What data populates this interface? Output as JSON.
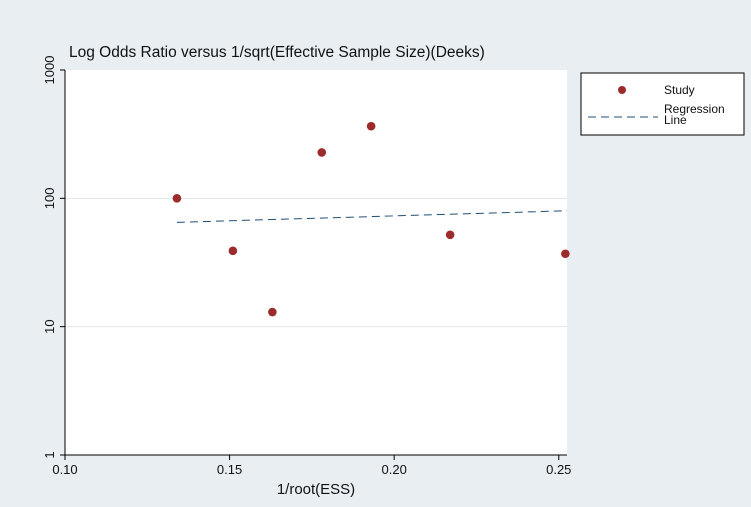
{
  "chart_data": {
    "type": "scatter",
    "title": "Log Odds Ratio versus 1/sqrt(Effective Sample Size)(Deeks)",
    "xlabel": "1/root(ESS)",
    "ylabel": "",
    "x_ticks": [
      "0.10",
      "0.15",
      "0.20",
      "0.25"
    ],
    "x_tick_values": [
      0.1,
      0.15,
      0.2,
      0.25
    ],
    "y_ticks": [
      "1",
      "10",
      "100",
      "1000"
    ],
    "y_tick_values": [
      1,
      10,
      100,
      1000
    ],
    "xlim": [
      0.1,
      0.2525
    ],
    "ylim": [
      1,
      1000
    ],
    "y_scale": "log",
    "grid": "horizontal",
    "legend_position": "right",
    "series": [
      {
        "name": "Study",
        "kind": "scatter",
        "color": "#9c2c2c",
        "x": [
          0.134,
          0.151,
          0.163,
          0.178,
          0.193,
          0.217,
          0.252
        ],
        "y": [
          100,
          39,
          13,
          228,
          365,
          52,
          37
        ]
      },
      {
        "name": "Regression\nLine",
        "kind": "line",
        "style": "dashed",
        "color": "#1f4f73",
        "x": [
          0.134,
          0.2525
        ],
        "y": [
          65,
          80
        ]
      }
    ],
    "legend": [
      {
        "label_line1": "Study",
        "label_line2": ""
      },
      {
        "label_line1": "Regression",
        "label_line2": "Line"
      }
    ]
  }
}
